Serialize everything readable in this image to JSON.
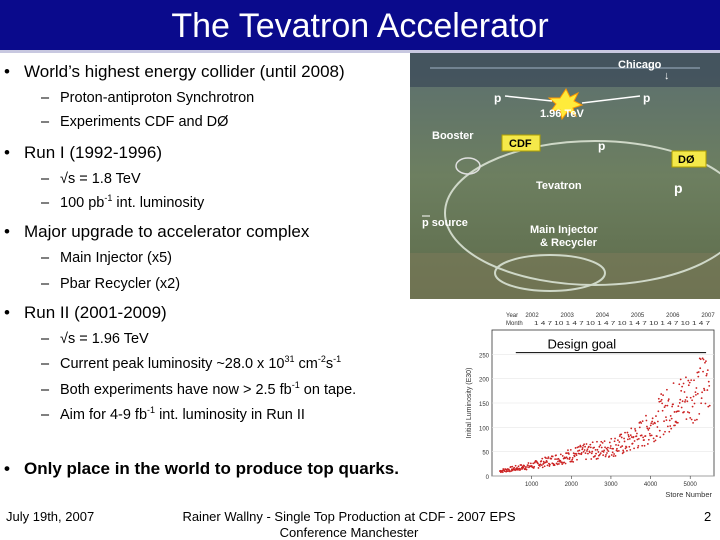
{
  "title": "The Tevatron Accelerator",
  "bullets": {
    "b1": "World’s highest energy collider (until 2008)",
    "b1_s1": "Proton-antiproton Synchrotron",
    "b1_s2": "Experiments CDF and DØ",
    "b2": "Run I (1992-1996)",
    "b2_s1": "√s = 1.8 TeV",
    "b2_s2_pre": "100 pb",
    "b2_s2_sup": "-1",
    "b2_s2_post": " int. luminosity",
    "b3": "Major upgrade to accelerator complex",
    "b3_s1": "Main Injector (x5)",
    "b3_s2": "Pbar Recycler (x2)",
    "b4": "Run II (2001-2009)",
    "b4_s1": "√s = 1.96 TeV",
    "b4_s2_pre": "Current peak luminosity ~28.0 x 10",
    "b4_s2_sup1": "31",
    "b4_s2_mid": " cm",
    "b4_s2_sup2": "-2",
    "b4_s2_mid2": "s",
    "b4_s2_sup3": "-1",
    "b4_s3_pre": "Both experiments have now > 2.5 fb",
    "b4_s3_sup": "-1",
    "b4_s3_post": " on tape.",
    "b4_s4_pre": "Aim for 4-9 fb",
    "b4_s4_sup": "-1",
    "b4_s4_post": " int. luminosity in Run II",
    "b5": "Only place in the world to produce top quarks."
  },
  "photo": {
    "chicago": "Chicago",
    "chicago_arrow": "↓",
    "p_left": "p",
    "p_right": "p",
    "energy": "1.96 TeV",
    "booster": "Booster",
    "cdf": "CDF",
    "p_mid": "p",
    "d0": "DØ",
    "tevatron": "Tevatron",
    "p_source": "p source",
    "main_injector": "Main Injector",
    "recycler": "& Recycler"
  },
  "chart_data": {
    "type": "scatter",
    "title": "",
    "xlabel": "Store Number",
    "ylabel": "Initial Luminosity (E30)",
    "xlim": [
      0,
      5600
    ],
    "ylim": [
      0,
      300
    ],
    "yticks": [
      0,
      50,
      100,
      150,
      200,
      250
    ],
    "xticks": [
      1000,
      2000,
      3000,
      4000,
      5000
    ],
    "top_axis": {
      "year_label": "Year",
      "month_label": "Month",
      "years": [
        "2002",
        "2003",
        "2004",
        "2005",
        "2006",
        "2007"
      ],
      "months": "1  4  7  10  1  4  7  10 1  4  7  10 1  4  7  10 1  4  7  10 1 4  7"
    },
    "annotation": "Design goal",
    "design_goal": 270,
    "trend": [
      {
        "x": 200,
        "y": 12
      },
      {
        "x": 1000,
        "y": 25
      },
      {
        "x": 1600,
        "y": 40
      },
      {
        "x": 2200,
        "y": 55
      },
      {
        "x": 2800,
        "y": 65
      },
      {
        "x": 3400,
        "y": 80
      },
      {
        "x": 3900,
        "y": 110
      },
      {
        "x": 4300,
        "y": 150
      },
      {
        "x": 4700,
        "y": 180
      },
      {
        "x": 5100,
        "y": 200
      },
      {
        "x": 5500,
        "y": 240
      }
    ]
  },
  "footer": {
    "date": "July 19th, 2007",
    "center_line1": "Rainer Wallny - Single Top Production at CDF - 2007 EPS",
    "center_line2": "Conference Manchester",
    "page": "2"
  },
  "colors": {
    "title_bar": "#0a0a8c",
    "points": "#cc2222",
    "label_yellow": "#f5e94a",
    "photo_label": "#ffffff"
  }
}
